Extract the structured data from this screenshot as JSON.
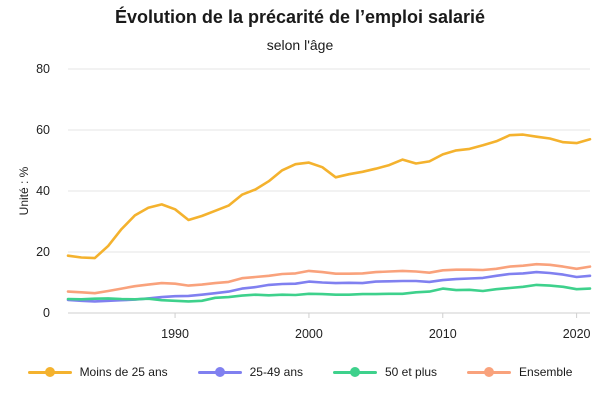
{
  "chart_data": {
    "type": "line",
    "title": "Évolution de la précarité de l’emploi salarié",
    "subtitle": "selon l'âge",
    "ylabel": "Unité : %",
    "xlabel": "",
    "xlim": [
      1982,
      2021
    ],
    "ylim": [
      0,
      80
    ],
    "yticks": [
      "0",
      "20",
      "40",
      "60",
      "80"
    ],
    "xticks": [
      "1990",
      "2000",
      "2010",
      "2020"
    ],
    "grid": "horizontal",
    "legend_position": "bottom",
    "x": [
      1982,
      1983,
      1984,
      1985,
      1986,
      1987,
      1988,
      1989,
      1990,
      1991,
      1992,
      1993,
      1994,
      1995,
      1996,
      1997,
      1998,
      1999,
      2000,
      2001,
      2002,
      2003,
      2004,
      2005,
      2006,
      2007,
      2008,
      2009,
      2010,
      2011,
      2012,
      2013,
      2014,
      2015,
      2016,
      2017,
      2018,
      2019,
      2020,
      2021
    ],
    "series": [
      {
        "name": "Moins de 25 ans",
        "color": "#f4b22e",
        "values": [
          18.8,
          18.2,
          18.0,
          22.0,
          27.5,
          32.0,
          34.5,
          35.6,
          34.0,
          30.5,
          31.8,
          33.5,
          35.2,
          38.8,
          40.5,
          43.2,
          46.8,
          48.8,
          49.3,
          47.8,
          44.5,
          45.5,
          46.3,
          47.3,
          48.5,
          50.3,
          49.0,
          49.7,
          52.0,
          53.3,
          53.8,
          55.0,
          56.3,
          58.3,
          58.5,
          57.8,
          57.2,
          56.0,
          55.7,
          57.0
        ]
      },
      {
        "name": "25-49 ans",
        "color": "#8080f0",
        "values": [
          4.3,
          4.0,
          3.8,
          4.0,
          4.2,
          4.4,
          4.8,
          5.2,
          5.5,
          5.6,
          6.0,
          6.5,
          7.0,
          8.0,
          8.5,
          9.2,
          9.5,
          9.6,
          10.3,
          10.0,
          9.8,
          9.9,
          9.8,
          10.3,
          10.4,
          10.5,
          10.5,
          10.2,
          10.8,
          11.1,
          11.3,
          11.5,
          12.2,
          12.8,
          13.0,
          13.4,
          13.1,
          12.6,
          11.8,
          12.2
        ]
      },
      {
        "name": "50 et plus",
        "color": "#3ed18c",
        "values": [
          4.6,
          4.5,
          4.7,
          4.8,
          4.6,
          4.5,
          4.7,
          4.2,
          4.0,
          3.8,
          4.0,
          5.0,
          5.2,
          5.7,
          6.0,
          5.8,
          6.0,
          5.9,
          6.3,
          6.2,
          6.0,
          6.0,
          6.2,
          6.2,
          6.3,
          6.3,
          6.8,
          7.0,
          8.0,
          7.5,
          7.6,
          7.2,
          7.8,
          8.2,
          8.6,
          9.2,
          9.0,
          8.6,
          7.8,
          8.0
        ]
      },
      {
        "name": "Ensemble",
        "color": "#f9a27c",
        "values": [
          7.0,
          6.8,
          6.5,
          7.2,
          8.0,
          8.8,
          9.3,
          9.8,
          9.6,
          9.0,
          9.3,
          9.8,
          10.2,
          11.4,
          11.8,
          12.2,
          12.8,
          13.0,
          13.8,
          13.4,
          12.9,
          12.9,
          13.0,
          13.4,
          13.6,
          13.8,
          13.6,
          13.2,
          14.0,
          14.2,
          14.2,
          14.1,
          14.5,
          15.2,
          15.5,
          16.0,
          15.8,
          15.2,
          14.5,
          15.2
        ]
      }
    ]
  }
}
